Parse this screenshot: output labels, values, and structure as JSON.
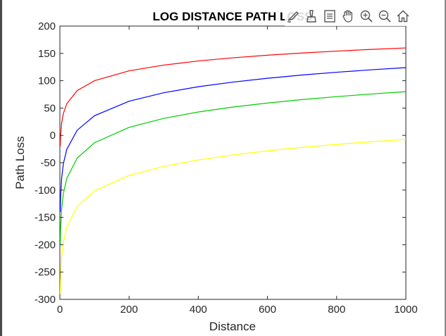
{
  "toolbar": {
    "icons": [
      "brush-edit-icon",
      "data-cursor-icon",
      "legend-icon",
      "pan-hand-icon",
      "zoom-in-icon",
      "zoom-out-icon",
      "home-icon"
    ]
  },
  "chart_data": {
    "type": "line",
    "title": "LOG DISTANCE PATH LOSS",
    "xlabel": "Distance",
    "ylabel": "Path Loss",
    "xlim": [
      0,
      1000
    ],
    "ylim": [
      -300,
      200
    ],
    "xticks": [
      "0",
      "200",
      "400",
      "600",
      "800",
      "1000"
    ],
    "yticks": [
      "200",
      "150",
      "100",
      "50",
      "0",
      "-50",
      "-100",
      "-150",
      "-200",
      "-250",
      "-300"
    ],
    "grid": false,
    "legend": false,
    "x": [
      1,
      2,
      5,
      10,
      20,
      50,
      100,
      200,
      300,
      400,
      500,
      600,
      700,
      800,
      900,
      1000
    ],
    "series": [
      {
        "color": "#ff0000",
        "values": [
          -20.0,
          -1.9,
          22.0,
          40.0,
          58.1,
          82.0,
          100.0,
          118.1,
          128.6,
          136.1,
          141.9,
          146.7,
          150.7,
          154.2,
          157.3,
          160.0
        ]
      },
      {
        "color": "#0000ff",
        "values": [
          -140.0,
          -113.5,
          -78.5,
          -52.0,
          -25.5,
          9.5,
          36.0,
          62.5,
          78.0,
          89.0,
          97.5,
          104.5,
          110.4,
          115.5,
          120.0,
          124.0
        ]
      },
      {
        "color": "#00cc00",
        "values": [
          -200.0,
          -171.9,
          -134.8,
          -106.7,
          -78.6,
          -41.5,
          -13.4,
          14.7,
          31.1,
          42.8,
          51.8,
          59.2,
          65.5,
          70.9,
          75.7,
          80.0
        ]
      },
      {
        "color": "#ffff00",
        "values": [
          -290.0,
          -261.6,
          -224.2,
          -195.8,
          -167.5,
          -130.0,
          -101.6,
          -73.3,
          -56.7,
          -44.9,
          -35.8,
          -28.3,
          -22.0,
          -16.5,
          -11.7,
          -7.4
        ]
      }
    ]
  }
}
